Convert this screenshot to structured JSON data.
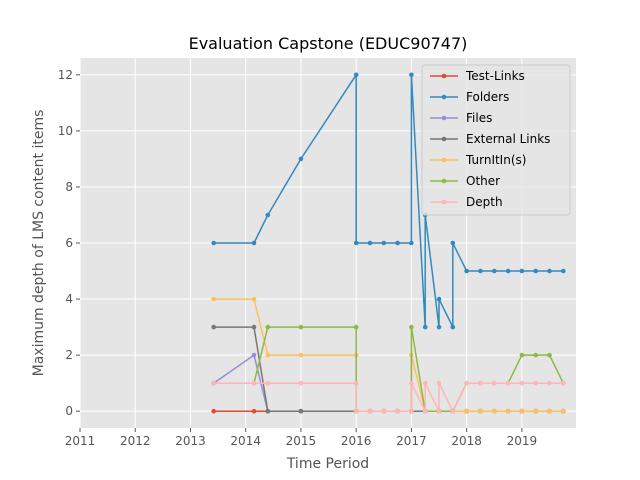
{
  "chart_data": {
    "type": "line",
    "title": "Evaluation Capstone (EDUC90747)",
    "xlabel": "Time Period",
    "ylabel": "Maximum depth of LMS content items",
    "xlim": [
      2011,
      2019.98
    ],
    "ylim": [
      -0.6,
      12.6
    ],
    "xticks": [
      2011,
      2012,
      2013,
      2014,
      2015,
      2016,
      2017,
      2018,
      2019
    ],
    "yticks": [
      0,
      2,
      4,
      6,
      8,
      10,
      12
    ],
    "grid": true,
    "legend_position": "upper right",
    "background": "#e5e5e5",
    "x": [
      2013.42,
      2014.15,
      2014.4,
      2015.0,
      2016.0,
      2016.0,
      2016.25,
      2016.5,
      2016.75,
      2017.0,
      2017.0,
      2017.25,
      2017.25,
      2017.5,
      2017.5,
      2017.75,
      2017.75,
      2018.0,
      2018.25,
      2018.5,
      2018.75,
      2019.0,
      2019.25,
      2019.5,
      2019.75
    ],
    "series": [
      {
        "name": "Test-Links",
        "color": "#e24a33",
        "values": [
          0,
          0,
          0,
          0,
          0,
          0,
          0,
          0,
          0,
          0,
          0,
          0,
          0,
          0,
          0,
          0,
          0,
          0,
          0,
          0,
          0,
          0,
          0,
          0,
          0
        ]
      },
      {
        "name": "Folders",
        "color": "#348abd",
        "values": [
          6,
          6,
          7,
          9,
          12,
          6,
          6,
          6,
          6,
          6,
          12,
          3,
          7,
          3,
          4,
          3,
          6,
          5,
          5,
          5,
          5,
          5,
          5,
          5,
          5
        ]
      },
      {
        "name": "Files",
        "color": "#988ed5",
        "values": [
          1,
          2,
          0,
          0,
          0,
          0,
          0,
          0,
          0,
          0,
          0,
          0,
          0,
          0,
          0,
          0,
          0,
          0,
          0,
          0,
          0,
          0,
          0,
          0,
          0
        ]
      },
      {
        "name": "External Links",
        "color": "#777777",
        "values": [
          3,
          3,
          0,
          0,
          0,
          0,
          0,
          0,
          0,
          0,
          0,
          0,
          0,
          0,
          0,
          0,
          0,
          0,
          0,
          0,
          0,
          0,
          0,
          0,
          0
        ]
      },
      {
        "name": "TurnItIn(s)",
        "color": "#fbc15e",
        "values": [
          4,
          4,
          2,
          2,
          2,
          0,
          0,
          0,
          0,
          0,
          2,
          0,
          0,
          0,
          0,
          0,
          0,
          0,
          0,
          0,
          0,
          0,
          0,
          0,
          0
        ]
      },
      {
        "name": "Other",
        "color": "#8eba42",
        "values": [
          1,
          1,
          3,
          3,
          3,
          0,
          0,
          0,
          0,
          0,
          3,
          0,
          0,
          0,
          0,
          0,
          0,
          1,
          1,
          1,
          1,
          2,
          2,
          2,
          1
        ]
      },
      {
        "name": "Depth",
        "color": "#ffb5b8",
        "values": [
          1,
          1,
          1,
          1,
          1,
          0,
          0,
          0,
          0,
          0,
          1,
          0,
          1,
          0,
          1,
          0,
          0,
          1,
          1,
          1,
          1,
          1,
          1,
          1,
          1
        ]
      }
    ]
  }
}
